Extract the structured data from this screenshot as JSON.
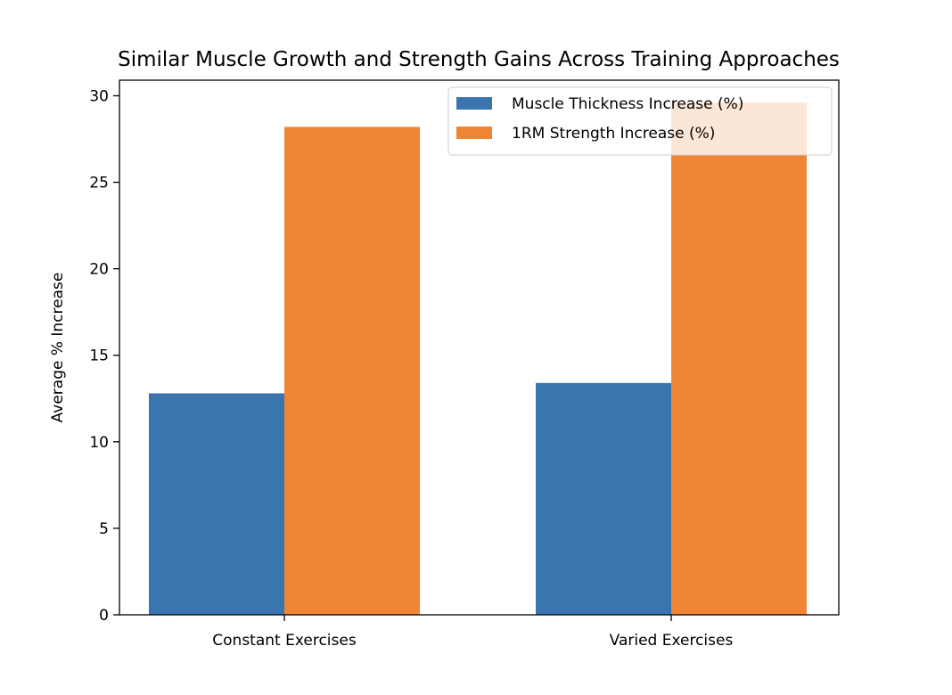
{
  "chart_data": {
    "type": "bar",
    "title": "Similar Muscle Growth and Strength Gains Across Training Approaches",
    "xlabel": "",
    "ylabel": "Average % Increase",
    "categories": [
      "Constant Exercises",
      "Varied Exercises"
    ],
    "series": [
      {
        "name": "Muscle Thickness Increase (%)",
        "values": [
          12.8,
          13.4
        ],
        "color": "#3a75af"
      },
      {
        "name": "1RM Strength Increase (%)",
        "values": [
          28.2,
          29.6
        ],
        "color": "#ef8636"
      }
    ],
    "ylim": [
      0,
      30.9
    ],
    "yticks": [
      0,
      5,
      10,
      15,
      20,
      25,
      30
    ],
    "ytick_labels": [
      "0",
      "5",
      "10",
      "15",
      "20",
      "25",
      "30"
    ],
    "grid": false,
    "legend": "top-right"
  }
}
